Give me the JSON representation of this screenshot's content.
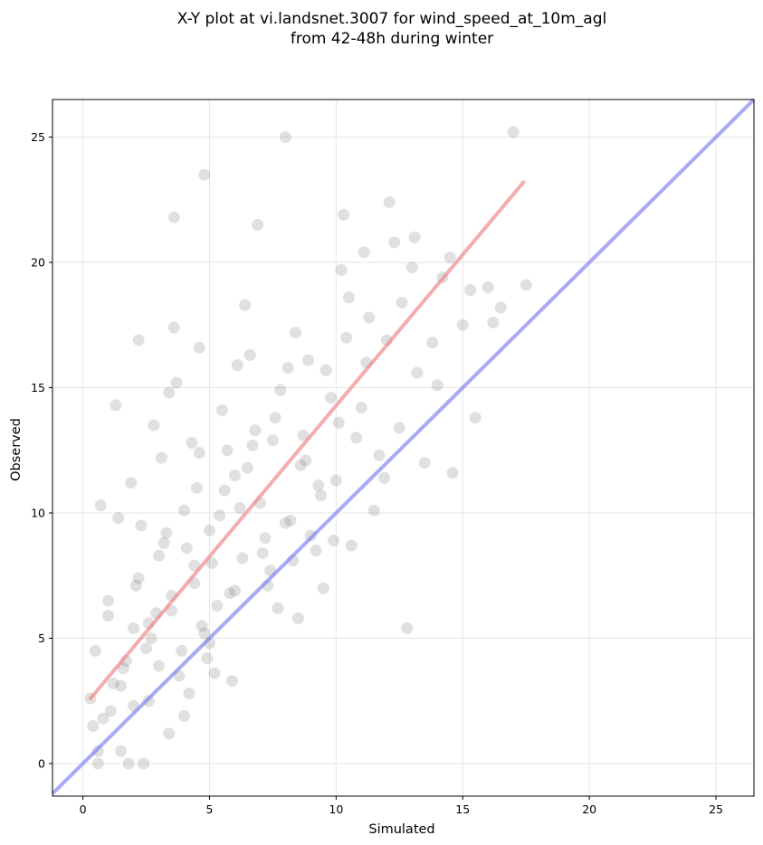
{
  "chart_data": {
    "type": "scatter",
    "title": "X-Y plot at vi.landsnet.3007 for wind_speed_at_10m_agl",
    "subtitle": "from 42-48h during winter",
    "xlabel": "Simulated",
    "ylabel": "Observed",
    "xlim": [
      -1.2,
      26.5
    ],
    "ylim": [
      -1.3,
      26.5
    ],
    "xticks": [
      0,
      5,
      10,
      15,
      20,
      25
    ],
    "yticks": [
      0,
      5,
      10,
      15,
      20,
      25
    ],
    "xtick_labels": [
      "0",
      "5",
      "10",
      "15",
      "20",
      "25"
    ],
    "ytick_labels": [
      "0",
      "5",
      "10",
      "15",
      "20",
      "25"
    ],
    "grid": true,
    "point_color": "#555555",
    "series": [
      {
        "type": "scatter",
        "x": [
          0.3,
          0.5,
          0.6,
          0.8,
          1.0,
          1.2,
          1.4,
          1.5,
          1.7,
          1.9,
          2.0,
          2.2,
          2.4,
          2.6,
          2.8,
          3.0,
          3.2,
          3.4,
          3.5,
          3.7,
          3.9,
          4.0,
          4.2,
          4.4,
          4.6,
          4.8,
          5.0,
          5.2,
          5.5,
          5.8,
          6.0,
          6.3,
          6.6,
          7.0,
          7.3,
          7.6,
          8.0,
          8.4,
          8.8,
          9.2,
          9.6,
          10.0,
          10.5,
          11.0,
          11.5,
          12.0,
          12.5,
          13.0,
          13.5,
          14.0,
          14.5,
          15.0,
          15.5,
          16.0,
          16.5,
          17.0,
          17.5,
          0.4,
          0.7,
          1.1,
          1.6,
          2.1,
          2.5,
          2.9,
          3.3,
          3.8,
          4.3,
          4.7,
          5.1,
          5.6,
          6.1,
          6.7,
          7.2,
          7.8,
          8.3,
          8.9,
          9.4,
          10.2,
          10.8,
          11.3,
          11.9,
          12.6,
          13.2,
          13.8,
          14.6,
          15.3,
          16.2,
          1.3,
          2.3,
          3.1,
          3.6,
          4.1,
          4.5,
          4.9,
          5.3,
          5.7,
          6.2,
          6.8,
          7.4,
          8.1,
          8.6,
          9.0,
          9.8,
          10.6,
          11.2,
          11.7,
          12.3,
          0.6,
          1.0,
          1.5,
          2.0,
          2.6,
          3.0,
          3.5,
          4.0,
          4.4,
          5.0,
          5.4,
          6.0,
          6.5,
          7.1,
          7.7,
          8.2,
          8.7,
          9.3,
          9.9,
          10.4,
          1.8,
          2.7,
          3.4,
          4.6,
          5.9,
          6.4,
          7.5,
          8.5,
          9.5,
          10.1,
          11.1,
          12.1,
          13.1,
          14.2,
          2.2,
          3.6,
          4.8,
          6.9,
          8.0,
          10.3,
          12.8
        ],
        "y": [
          2.6,
          4.5,
          0.0,
          1.8,
          6.5,
          3.2,
          9.8,
          0.5,
          4.1,
          11.2,
          2.3,
          7.4,
          0.0,
          5.6,
          13.5,
          3.9,
          8.8,
          1.2,
          6.1,
          15.2,
          4.5,
          10.1,
          2.8,
          7.9,
          12.4,
          5.2,
          9.3,
          3.6,
          14.1,
          6.8,
          11.5,
          8.2,
          16.3,
          10.4,
          7.1,
          13.8,
          9.6,
          17.2,
          12.1,
          8.5,
          15.7,
          11.3,
          18.6,
          14.2,
          10.1,
          16.9,
          13.4,
          19.8,
          12.0,
          15.1,
          20.2,
          17.5,
          13.8,
          19.0,
          18.2,
          25.2,
          19.1,
          1.5,
          10.3,
          2.1,
          3.8,
          7.1,
          4.6,
          6.0,
          9.2,
          3.5,
          12.8,
          5.5,
          8.0,
          10.9,
          15.9,
          12.7,
          9.0,
          14.9,
          8.1,
          16.1,
          10.7,
          19.7,
          13.0,
          17.8,
          11.4,
          18.4,
          15.6,
          16.8,
          11.6,
          18.9,
          17.6,
          14.3,
          9.5,
          12.2,
          17.4,
          8.6,
          11.0,
          4.2,
          6.3,
          12.5,
          10.2,
          13.3,
          7.7,
          15.8,
          11.9,
          9.1,
          14.6,
          8.7,
          16.0,
          12.3,
          20.8,
          0.5,
          5.9,
          3.1,
          5.4,
          2.5,
          8.3,
          6.7,
          1.9,
          7.2,
          4.8,
          9.9,
          6.9,
          11.8,
          8.4,
          6.2,
          9.7,
          13.1,
          11.1,
          8.9,
          17.0,
          0.0,
          5.0,
          14.8,
          16.6,
          3.3,
          18.3,
          12.9,
          5.8,
          7.0,
          13.6,
          20.4,
          22.4,
          21.0,
          19.4,
          16.9,
          21.8,
          23.5,
          21.5,
          25.0,
          21.9,
          5.4
        ],
        "regression": {
          "x": [
            0.3,
            17.4
          ],
          "y": [
            2.6,
            23.2
          ],
          "color": "#f08080"
        },
        "identity": {
          "x": [
            -1.2,
            26.5
          ],
          "y": [
            -1.2,
            26.5
          ],
          "color": "#6f6ff0"
        }
      }
    ]
  }
}
